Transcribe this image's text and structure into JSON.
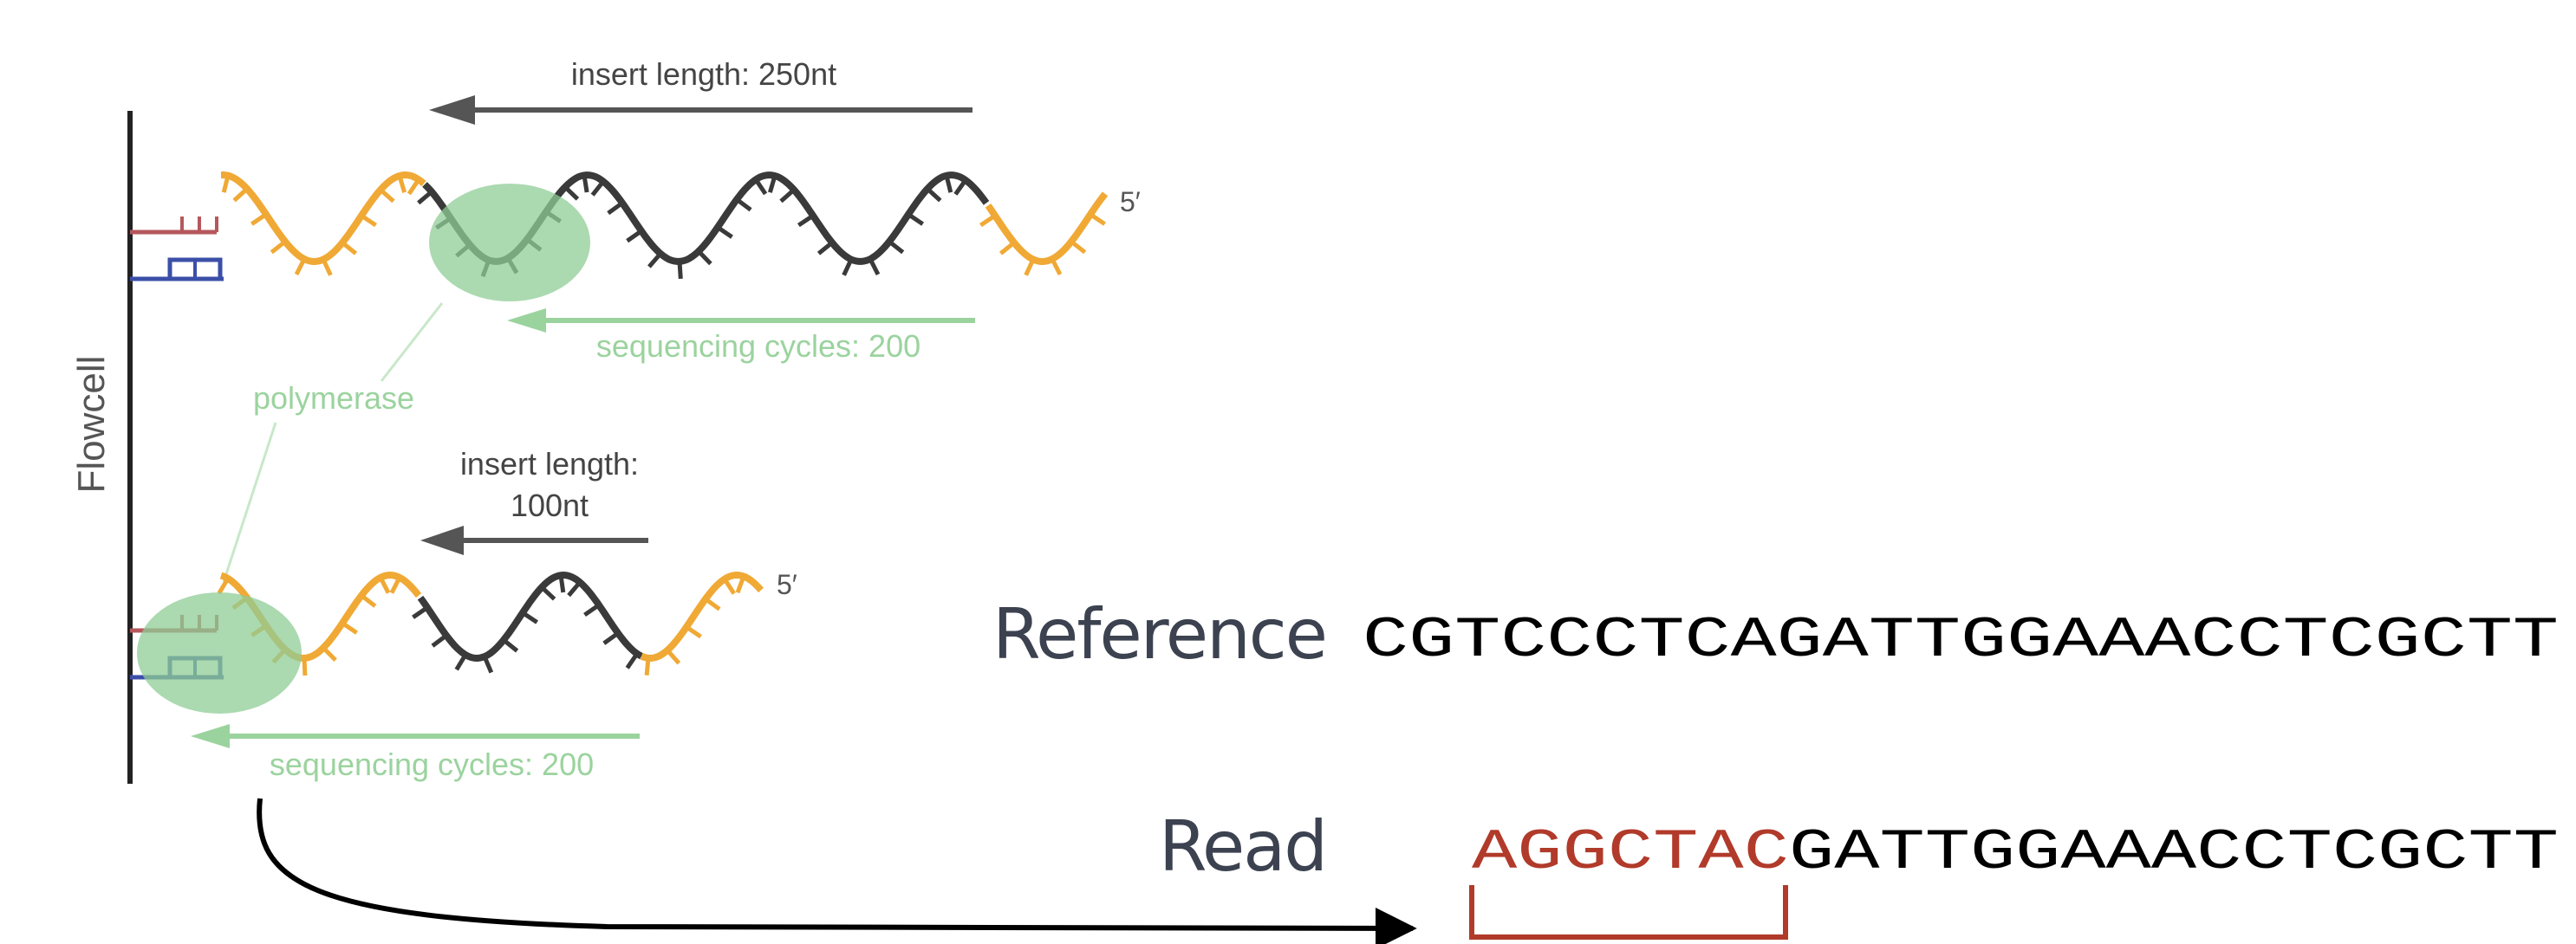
{
  "flowcell_label": "Flowcell",
  "polymerase_label": "polymerase",
  "five_prime": "5′",
  "top_insert": {
    "length_label": "insert length: 250nt",
    "cycles_label": "sequencing cycles: 200"
  },
  "bottom_insert": {
    "length_label_line1": "insert length:",
    "length_label_line2": "100nt",
    "cycles_label": "sequencing cycles: 200"
  },
  "reference": {
    "label": "Reference",
    "sequence": "CGTCCCTCAGATTGGAAACCTCGCTT"
  },
  "read": {
    "label": "Read",
    "adapter_part": "AGGCTAC",
    "matching_part": "GATTGGAAACCTCGCTT"
  },
  "colors": {
    "adapter": "#f0a935",
    "insert": "#3a3a3a",
    "polymerase": "#8fcc95",
    "arrow": "#555555",
    "cycles_arrow": "#9bd39e",
    "anchor_red": "#b5585c",
    "anchor_blue": "#3b4fa8",
    "read_adapter": "#b13a2a",
    "reference_label": "#3c4250"
  }
}
